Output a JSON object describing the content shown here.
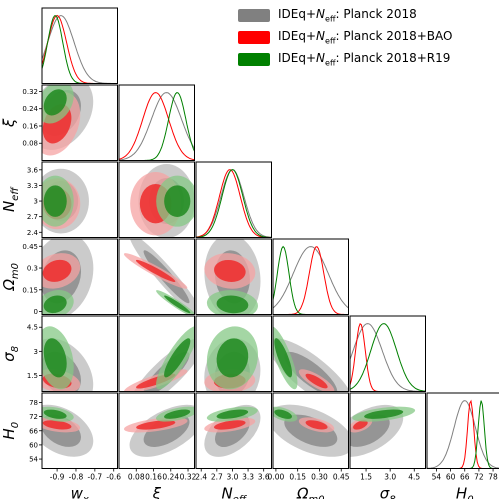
{
  "chart_data": {
    "type": "corner",
    "legend": [
      {
        "label": "IDEq+Neff: Planck 2018",
        "pre": "IDEq+",
        "sym": "N",
        "sub": "eff",
        "post": ": Planck 2018",
        "color": "#808080"
      },
      {
        "label": "IDEq+Neff: Planck 2018+BAO",
        "pre": "IDEq+",
        "sym": "N",
        "sub": "eff",
        "post": ": Planck 2018+BAO",
        "color": "#ff0000"
      },
      {
        "label": "IDEq+Neff: Planck 2018+R19",
        "pre": "IDEq+",
        "sym": "N",
        "sub": "eff",
        "post": ": Planck 2018+R19",
        "color": "#008000"
      }
    ],
    "params": [
      {
        "key": "wx",
        "sym": "w",
        "sub": "x",
        "ticks": [
          "-0.9",
          "-0.8",
          "-0.7",
          "-0.6"
        ],
        "range": [
          -0.98,
          -0.58
        ],
        "tickvals": [
          -0.9,
          -0.8,
          -0.7,
          -0.6
        ]
      },
      {
        "key": "xi",
        "sym": "ξ",
        "sub": "",
        "ticks": [
          "0.08",
          "0.16",
          "0.24",
          "0.32"
        ],
        "range": [
          0.0,
          0.35
        ],
        "tickvals": [
          0.08,
          0.16,
          0.24,
          0.32
        ]
      },
      {
        "key": "Neff",
        "sym": "N",
        "sub": "eff",
        "ticks": [
          "2.4",
          "2.7",
          "3.0",
          "3.3",
          "3.6"
        ],
        "range": [
          2.3,
          3.75
        ],
        "tickvals": [
          2.4,
          2.7,
          3.0,
          3.3,
          3.6
        ]
      },
      {
        "key": "Om",
        "sym": "Ω",
        "sub": "m0",
        "ticks": [
          "0.00",
          "0.15",
          "0.30",
          "0.45"
        ],
        "range": [
          -0.02,
          0.5
        ],
        "tickvals": [
          0.0,
          0.15,
          0.3,
          0.45
        ]
      },
      {
        "key": "s8",
        "sym": "σ",
        "sub": "8",
        "ticks": [
          "1.5",
          "3.0",
          "4.5"
        ],
        "range": [
          0.5,
          5.2
        ],
        "tickvals": [
          1.5,
          3.0,
          4.5
        ]
      },
      {
        "key": "H0",
        "sym": "H",
        "sub": "0",
        "ticks": [
          "54",
          "60",
          "66",
          "72",
          "78"
        ],
        "range": [
          50,
          82
        ],
        "tickvals": [
          54,
          60,
          66,
          72,
          78
        ]
      }
    ],
    "ylabel_ticks": [
      {
        "row": 1,
        "ticks": [
          "0.08",
          "0.16",
          "0.24",
          "0.32"
        ]
      },
      {
        "row": 2,
        "ticks": [
          "2.4",
          "2.7",
          "3",
          "3.3",
          "3.6"
        ]
      },
      {
        "row": 3,
        "ticks": [
          "0",
          "0.15",
          "0.3",
          "0.45"
        ]
      },
      {
        "row": 4,
        "ticks": [
          "1.5",
          "3",
          "4.5"
        ]
      },
      {
        "row": 5,
        "ticks": [
          "54",
          "60",
          "66",
          "72",
          "78"
        ]
      }
    ],
    "series": [
      {
        "name": "Planck 2018",
        "color": "#808080",
        "fill": [
          "#b9b9b9",
          "#8c8c8c"
        ],
        "mean": [
          -0.88,
          0.22,
          3.0,
          0.24,
          1.6,
          66.0
        ],
        "sd": [
          0.07,
          0.07,
          0.22,
          0.12,
          0.9,
          4.5
        ]
      },
      {
        "name": "Planck 2018+BAO",
        "color": "#ff0000",
        "fill": [
          "#f5a3a3",
          "#ee2a2a"
        ],
        "mean": [
          -0.9,
          0.17,
          2.95,
          0.28,
          1.15,
          68.5
        ],
        "sd": [
          0.05,
          0.06,
          0.2,
          0.05,
          0.3,
          1.3
        ]
      },
      {
        "name": "Planck 2018+R19",
        "color": "#008000",
        "fill": [
          "#86c886",
          "#1e8a1e"
        ],
        "mean": [
          -0.91,
          0.27,
          3.0,
          0.05,
          2.6,
          73.0
        ],
        "sd": [
          0.04,
          0.04,
          0.2,
          0.04,
          0.8,
          1.3
        ]
      }
    ],
    "grid": false
  }
}
